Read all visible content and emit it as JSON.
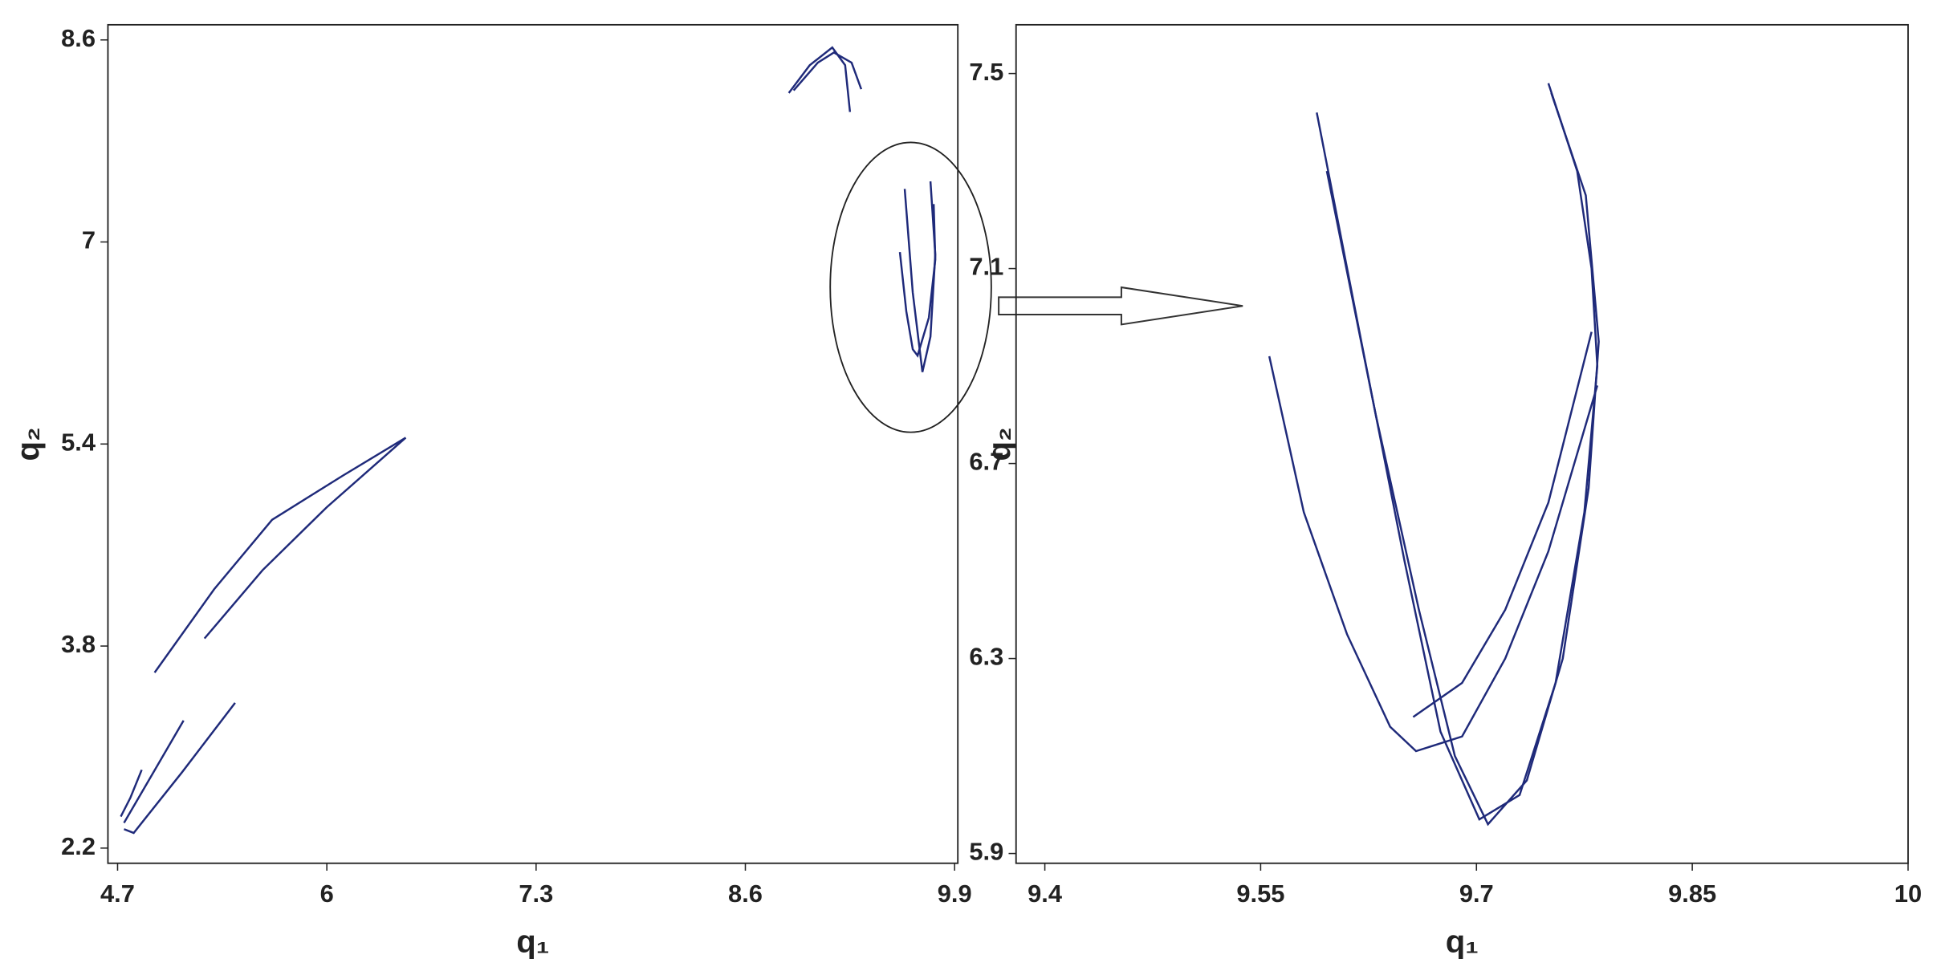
{
  "chart_data": [
    {
      "type": "line",
      "xlabel": "q₁",
      "ylabel": "q₂",
      "xlim": [
        4.64,
        9.92
      ],
      "ylim": [
        2.08,
        8.72
      ],
      "xticks": [
        4.7,
        6,
        7.3,
        8.6,
        9.9
      ],
      "yticks": [
        2.2,
        3.8,
        5.4,
        7,
        8.6
      ],
      "series": [
        {
          "color": "#1f2a7a",
          "x": [
            8.87,
            9.0,
            9.14,
            9.22,
            9.25
          ],
          "values": [
            8.18,
            8.4,
            8.54,
            8.4,
            8.03
          ]
        },
        {
          "color": "#1f2a7a",
          "x": [
            8.9,
            9.05,
            9.15,
            9.26,
            9.32
          ],
          "values": [
            8.2,
            8.42,
            8.5,
            8.42,
            8.21
          ]
        },
        {
          "color": "#1f2a7a",
          "x": [
            9.56,
            9.6,
            9.64,
            9.67,
            9.74,
            9.78,
            9.77
          ],
          "values": [
            6.92,
            6.45,
            6.15,
            6.1,
            6.4,
            6.86,
            7.3
          ]
        },
        {
          "color": "#1f2a7a",
          "x": [
            9.59,
            9.64,
            9.7,
            9.75,
            9.78,
            9.75
          ],
          "values": [
            7.42,
            6.6,
            5.97,
            6.25,
            6.9,
            7.48
          ]
        },
        {
          "color": "#1f2a7a",
          "x": [
            4.93,
            5.3,
            5.66,
            6.1,
            6.49
          ],
          "values": [
            3.59,
            4.25,
            4.8,
            5.15,
            5.45
          ]
        },
        {
          "color": "#1f2a7a",
          "x": [
            5.24,
            5.6,
            6.0,
            6.49
          ],
          "values": [
            3.86,
            4.4,
            4.9,
            5.45
          ]
        },
        {
          "color": "#1f2a7a",
          "x": [
            4.74,
            4.8,
            5.1,
            5.43
          ],
          "values": [
            2.35,
            2.32,
            2.8,
            3.35
          ]
        },
        {
          "color": "#1f2a7a",
          "x": [
            4.74,
            4.9,
            5.11
          ],
          "values": [
            2.4,
            2.75,
            3.21
          ]
        },
        {
          "color": "#1f2a7a",
          "x": [
            4.72,
            4.78,
            4.85
          ],
          "values": [
            2.45,
            2.6,
            2.82
          ]
        }
      ]
    },
    {
      "type": "line",
      "xlabel": "q₁",
      "ylabel": "q₂",
      "xlim": [
        9.38,
        10.0
      ],
      "ylim": [
        5.88,
        7.6
      ],
      "xticks": [
        9.4,
        9.55,
        9.7,
        9.85,
        10
      ],
      "yticks": [
        5.9,
        6.3,
        6.7,
        7.1,
        7.5
      ],
      "series": [
        {
          "color": "#1f2a7a",
          "x": [
            9.556,
            9.58,
            9.61,
            9.64,
            9.658,
            9.69,
            9.72,
            9.75,
            9.784
          ],
          "values": [
            6.92,
            6.6,
            6.35,
            6.16,
            6.11,
            6.14,
            6.3,
            6.52,
            6.86
          ]
        },
        {
          "color": "#1f2a7a",
          "x": [
            9.589,
            9.62,
            9.65,
            9.675,
            9.702,
            9.73,
            9.755,
            9.775,
            9.784,
            9.78,
            9.77,
            9.75
          ],
          "values": [
            7.42,
            6.95,
            6.5,
            6.15,
            5.97,
            6.02,
            6.25,
            6.6,
            6.9,
            7.1,
            7.3,
            7.48
          ]
        },
        {
          "color": "#1f2a7a",
          "x": [
            9.596,
            9.63,
            9.66,
            9.685,
            9.708,
            9.735,
            9.76,
            9.778,
            9.785,
            9.776,
            9.752
          ],
          "values": [
            7.3,
            6.8,
            6.4,
            6.1,
            5.96,
            6.05,
            6.3,
            6.65,
            6.95,
            7.25,
            7.46
          ]
        },
        {
          "color": "#1f2a7a",
          "x": [
            9.656,
            9.69,
            9.72,
            9.75,
            9.78
          ],
          "values": [
            6.18,
            6.25,
            6.4,
            6.62,
            6.97
          ]
        }
      ]
    }
  ]
}
